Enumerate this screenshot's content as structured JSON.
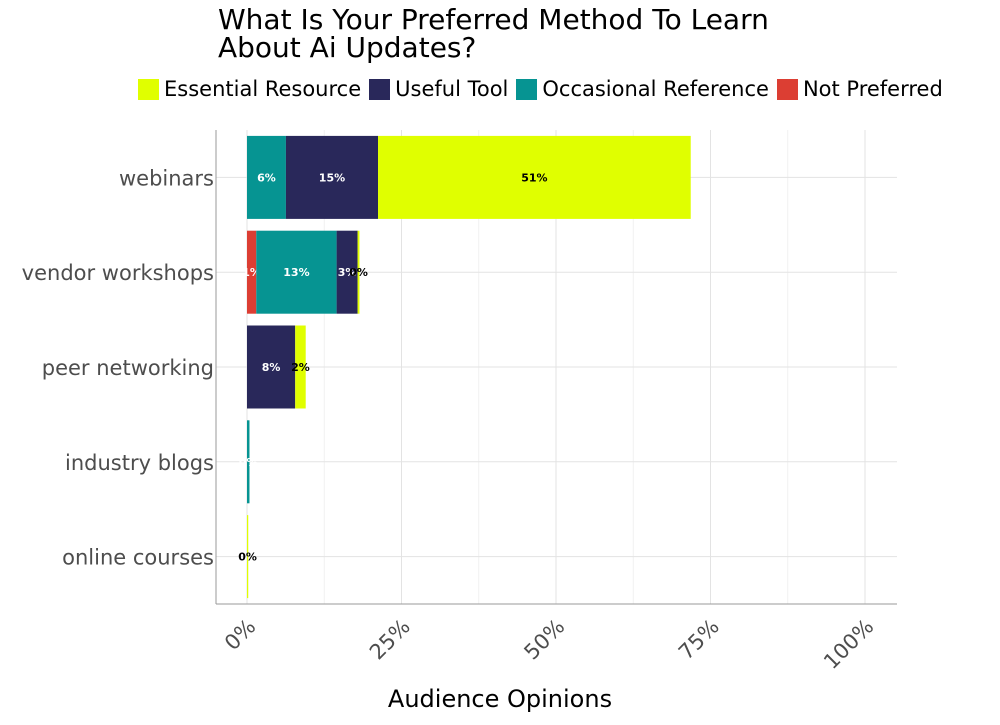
{
  "chart_data": {
    "type": "bar",
    "orientation": "horizontal",
    "stacked": true,
    "title_lines": [
      "What Is Your Preferred Method To Learn",
      "About Ai Updates?"
    ],
    "xlabel": "Audience Opinions",
    "ylabel": "",
    "xlim": [
      0,
      1.05
    ],
    "x_ticks": [
      0,
      0.25,
      0.5,
      0.75,
      1.0
    ],
    "x_tick_labels": [
      "0%",
      "25%",
      "50%",
      "75%",
      "100%"
    ],
    "grid": true,
    "legend_position": "top",
    "categories": [
      "webinars",
      "vendor workshops",
      "peer networking",
      "industry blogs",
      "online courses"
    ],
    "series": [
      {
        "name": "Not Preferred",
        "color": "#dc3e33",
        "label_color": "#ffffff",
        "values": [
          0,
          0.015,
          0,
          0,
          0
        ],
        "labels": [
          "",
          "1%",
          "",
          "",
          ""
        ]
      },
      {
        "name": "Occasional Reference",
        "color": "#069492",
        "label_color": "#ffffff",
        "values": [
          0.063,
          0.13,
          0,
          0.004,
          0
        ],
        "labels": [
          "6%",
          "13%",
          "",
          "0%",
          ""
        ]
      },
      {
        "name": "Useful Tool",
        "color": "#29285a",
        "label_color": "#ffffff",
        "values": [
          0.149,
          0.034,
          0.078,
          0,
          0
        ],
        "labels": [
          "15%",
          "3%",
          "8%",
          "",
          ""
        ]
      },
      {
        "name": "Essential Resource",
        "color": "#e0ff00",
        "label_color": "#000000",
        "values": [
          0.506,
          0.003,
          0.017,
          0,
          0.002
        ],
        "labels": [
          "51%",
          "0%",
          "2%",
          "",
          "0%"
        ]
      }
    ],
    "legend_order": [
      "Essential Resource",
      "Useful Tool",
      "Occasional Reference",
      "Not Preferred"
    ]
  }
}
